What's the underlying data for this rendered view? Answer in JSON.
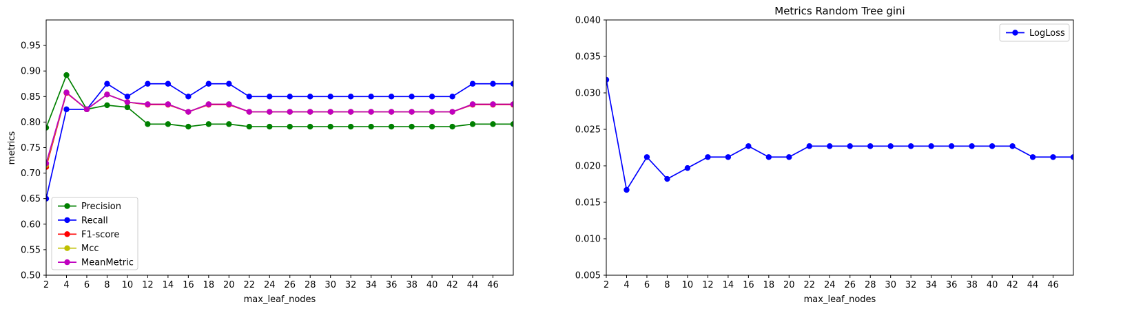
{
  "chart_data": [
    {
      "type": "line",
      "title": "",
      "xlabel": "max_leaf_nodes",
      "ylabel": "metrics",
      "xlim": [
        2,
        48
      ],
      "ylim": [
        0.5,
        1.0
      ],
      "xticks": [
        2,
        4,
        6,
        8,
        10,
        12,
        14,
        16,
        18,
        20,
        22,
        24,
        26,
        28,
        30,
        32,
        34,
        36,
        38,
        40,
        42,
        44,
        46
      ],
      "xtick_labels": [
        "2",
        "4",
        "6",
        "8",
        "10",
        "12",
        "14",
        "16",
        "18",
        "20",
        "22",
        "24",
        "26",
        "28",
        "30",
        "32",
        "34",
        "36",
        "38",
        "40",
        "42",
        "44",
        "46"
      ],
      "yticks": [
        0.5,
        0.55,
        0.6,
        0.65,
        0.7,
        0.75,
        0.8,
        0.85,
        0.9,
        0.95
      ],
      "ytick_labels": [
        "0.50",
        "0.55",
        "0.60",
        "0.65",
        "0.70",
        "0.75",
        "0.80",
        "0.85",
        "0.90",
        "0.95"
      ],
      "legend_position": "lower-left",
      "x": [
        2,
        4,
        6,
        8,
        10,
        12,
        14,
        16,
        18,
        20,
        22,
        24,
        26,
        28,
        30,
        32,
        34,
        36,
        38,
        40,
        42,
        44,
        46,
        48
      ],
      "series": [
        {
          "name": "Precision",
          "color": "#008000",
          "values": [
            0.789,
            0.892,
            0.825,
            0.833,
            0.829,
            0.796,
            0.796,
            0.791,
            0.796,
            0.796,
            0.791,
            0.791,
            0.791,
            0.791,
            0.791,
            0.791,
            0.791,
            0.791,
            0.791,
            0.791,
            0.791,
            0.796,
            0.796,
            0.796
          ]
        },
        {
          "name": "Recall",
          "color": "#0000ff",
          "values": [
            0.65,
            0.825,
            0.825,
            0.875,
            0.85,
            0.875,
            0.875,
            0.85,
            0.875,
            0.875,
            0.85,
            0.85,
            0.85,
            0.85,
            0.85,
            0.85,
            0.85,
            0.85,
            0.85,
            0.85,
            0.85,
            0.875,
            0.875,
            0.875
          ]
        },
        {
          "name": "F1-score",
          "color": "#ff0000",
          "values": [
            0.712,
            0.857,
            0.825,
            0.854,
            0.839,
            0.834,
            0.834,
            0.82,
            0.834,
            0.834,
            0.82,
            0.82,
            0.82,
            0.82,
            0.82,
            0.82,
            0.82,
            0.82,
            0.82,
            0.82,
            0.82,
            0.834,
            0.834,
            0.834
          ]
        },
        {
          "name": "Mcc",
          "color": "#bfbf00",
          "values": [
            0.716,
            0.858,
            0.825,
            0.854,
            0.839,
            0.835,
            0.835,
            0.82,
            0.835,
            0.835,
            0.82,
            0.82,
            0.82,
            0.82,
            0.82,
            0.82,
            0.82,
            0.82,
            0.82,
            0.82,
            0.82,
            0.835,
            0.835,
            0.835
          ]
        },
        {
          "name": "MeanMetric",
          "color": "#bf00bf",
          "values": [
            0.719,
            0.858,
            0.825,
            0.854,
            0.839,
            0.835,
            0.835,
            0.82,
            0.835,
            0.835,
            0.82,
            0.82,
            0.82,
            0.82,
            0.82,
            0.82,
            0.82,
            0.82,
            0.82,
            0.82,
            0.82,
            0.835,
            0.835,
            0.835
          ]
        }
      ]
    },
    {
      "type": "line",
      "title": "Metrics Random Tree gini",
      "xlabel": "max_leaf_nodes",
      "ylabel": "",
      "xlim": [
        2,
        48
      ],
      "ylim": [
        0.005,
        0.04
      ],
      "xticks": [
        2,
        4,
        6,
        8,
        10,
        12,
        14,
        16,
        18,
        20,
        22,
        24,
        26,
        28,
        30,
        32,
        34,
        36,
        38,
        40,
        42,
        44,
        46
      ],
      "xtick_labels": [
        "2",
        "4",
        "6",
        "8",
        "10",
        "12",
        "14",
        "16",
        "18",
        "20",
        "22",
        "24",
        "26",
        "28",
        "30",
        "32",
        "34",
        "36",
        "38",
        "40",
        "42",
        "44",
        "46"
      ],
      "yticks": [
        0.005,
        0.01,
        0.015,
        0.02,
        0.025,
        0.03,
        0.035,
        0.04
      ],
      "ytick_labels": [
        "0.005",
        "0.010",
        "0.015",
        "0.020",
        "0.025",
        "0.030",
        "0.035",
        "0.040"
      ],
      "legend_position": "upper-right",
      "x": [
        2,
        4,
        6,
        8,
        10,
        12,
        14,
        16,
        18,
        20,
        22,
        24,
        26,
        28,
        30,
        32,
        34,
        36,
        38,
        40,
        42,
        44,
        46,
        48
      ],
      "series": [
        {
          "name": "LogLoss",
          "color": "#0000ff",
          "values": [
            0.0318,
            0.0167,
            0.0212,
            0.0182,
            0.0197,
            0.0212,
            0.0212,
            0.0227,
            0.0212,
            0.0212,
            0.0227,
            0.0227,
            0.0227,
            0.0227,
            0.0227,
            0.0227,
            0.0227,
            0.0227,
            0.0227,
            0.0227,
            0.0227,
            0.0212,
            0.0212,
            0.0212
          ]
        }
      ]
    }
  ]
}
